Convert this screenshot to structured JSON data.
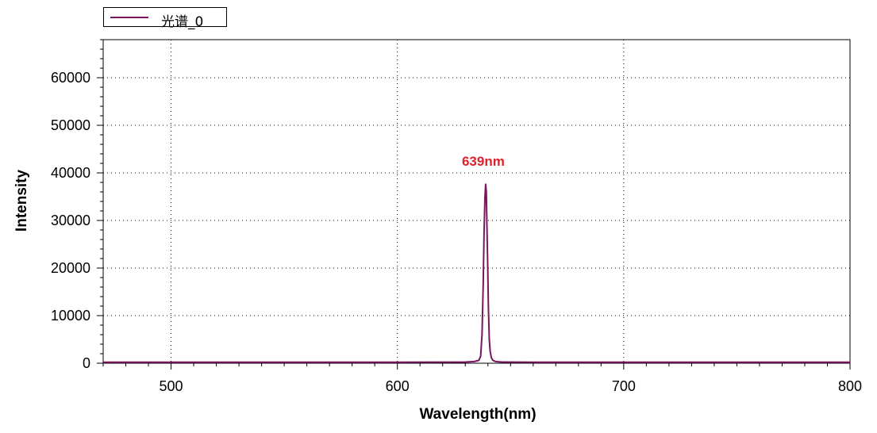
{
  "chart_data": {
    "type": "line",
    "xlabel": "Wavelength(nm)",
    "ylabel": "Intensity",
    "xlim": [
      470,
      800
    ],
    "ylim": [
      0,
      68000
    ],
    "x_ticks": [
      500,
      600,
      700,
      800
    ],
    "y_ticks": [
      0,
      10000,
      20000,
      30000,
      40000,
      50000,
      60000
    ],
    "grid": true,
    "legend_position": "top-left",
    "series": [
      {
        "name": "光谱_0",
        "color": "#7a1560",
        "x": [
          470,
          600,
          630,
          634,
          636,
          636.8,
          637.4,
          637.9,
          638.3,
          638.7,
          639.0,
          639.3,
          639.6,
          639.9,
          640.2,
          640.6,
          641.0,
          641.5,
          642.2,
          643.5,
          646,
          660,
          700,
          800
        ],
        "y": [
          200,
          200,
          250,
          350,
          600,
          1500,
          6000,
          16000,
          27500,
          35000,
          37600,
          36000,
          28000,
          21000,
          12000,
          5000,
          2500,
          1200,
          600,
          350,
          250,
          200,
          200,
          200
        ]
      }
    ],
    "annotations": [
      {
        "text": "639nm",
        "x": 639,
        "y": 42500,
        "color": "#e0202a"
      }
    ]
  }
}
